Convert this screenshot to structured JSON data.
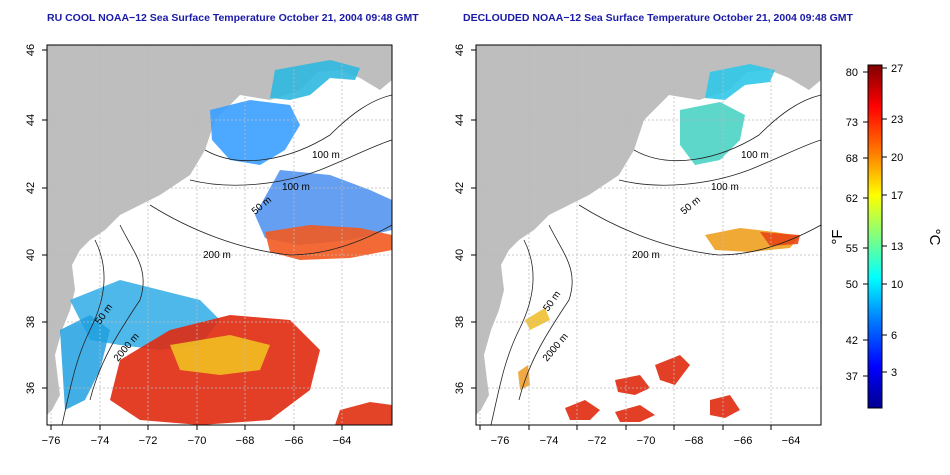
{
  "panels": [
    {
      "title": "RU COOL NOAA−12 Sea Surface Temperature October 21, 2004 09:48 GMT",
      "x_ticks": [
        "−76",
        "−74",
        "−72",
        "−70",
        "−68",
        "−66",
        "−64"
      ],
      "y_ticks": [
        "36",
        "38",
        "40",
        "42",
        "44",
        "46"
      ],
      "contour_labels": [
        "100 m",
        "100 m",
        "50 m",
        "200 m",
        "50 m",
        "2000 m"
      ]
    },
    {
      "title": "DECLOUDED NOAA−12 Sea Surface Temperature October 21, 2004 09:48 GMT",
      "x_ticks": [
        "−76",
        "−74",
        "−72",
        "−70",
        "−68",
        "−66",
        "−64"
      ],
      "y_ticks": [
        "36",
        "38",
        "40",
        "42",
        "44",
        "46"
      ],
      "contour_labels": [
        "100 m",
        "100 m",
        "50 m",
        "200 m",
        "50 m",
        "2000 m"
      ]
    }
  ],
  "colorbar": {
    "f_label": "°F",
    "c_label": "°C",
    "f_ticks": [
      "80",
      "73",
      "68",
      "62",
      "55",
      "50",
      "42",
      "37"
    ],
    "c_ticks": [
      "27",
      "23",
      "20",
      "17",
      "13",
      "10",
      "6",
      "3"
    ],
    "colors": [
      "#00008f",
      "#0000ff",
      "#0080ff",
      "#00ffff",
      "#80ff80",
      "#ffff00",
      "#ff8000",
      "#ff0000",
      "#800000"
    ]
  },
  "map_colors": {
    "land": "#bebebe",
    "ocean": "#ffffff",
    "grid": "#bbbbbb"
  }
}
